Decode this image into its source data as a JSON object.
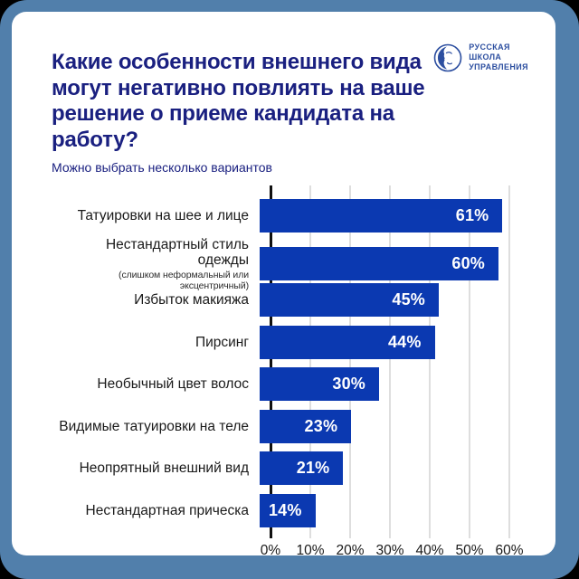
{
  "header": {
    "title": "Какие особенности внешнего вида\nмогут негативно повлиять на ваше\nрешение о приеме кандидата на работу?",
    "subtitle": "Можно выбрать несколько вариантов",
    "logo": {
      "icon": "rsu-profile-face-icon",
      "text": "РУССКАЯ\nШКОЛА\nУПРАВЛЕНИЯ"
    }
  },
  "colors": {
    "frame_blue": "#517FAB",
    "bar_blue": "#0B39B1",
    "title_navy": "#1A2080",
    "logo_blue": "#2D4FA0",
    "label_dark": "#1A1A1A",
    "gridline_gray": "#DEDEDE",
    "card_white": "#FFFFFF"
  },
  "chart_data": {
    "type": "bar",
    "orientation": "horizontal",
    "title": "Какие особенности внешнего вида могут негативно повлиять на ваше решение о приеме кандидата на работу?",
    "subtitle": "Можно выбрать несколько вариантов",
    "categories": [
      "Татуировки на шее и лице",
      "Нестандартный стиль одежды",
      "Избыток макияжа",
      "Пирсинг",
      "Необычный цвет волос",
      "Видимые татуировки на теле",
      "Неопрятный внешний вид",
      "Нестандартная прическа"
    ],
    "sublabels": {
      "1": "(слишком неформальный или эксцентричный)"
    },
    "values": [
      61,
      60,
      45,
      44,
      30,
      23,
      21,
      14
    ],
    "value_labels": [
      "61%",
      "60%",
      "45%",
      "44%",
      "30%",
      "23%",
      "21%",
      "14%"
    ],
    "xlim": [
      0,
      60
    ],
    "tick_values": [
      0,
      10,
      20,
      30,
      40,
      50,
      60
    ],
    "x_tick_labels": [
      "0%",
      "10%",
      "20%",
      "30%",
      "40%",
      "50%",
      "60%"
    ],
    "xlabel": "",
    "ylabel": "",
    "grid": "vertical-light-gray",
    "legend": "none"
  }
}
